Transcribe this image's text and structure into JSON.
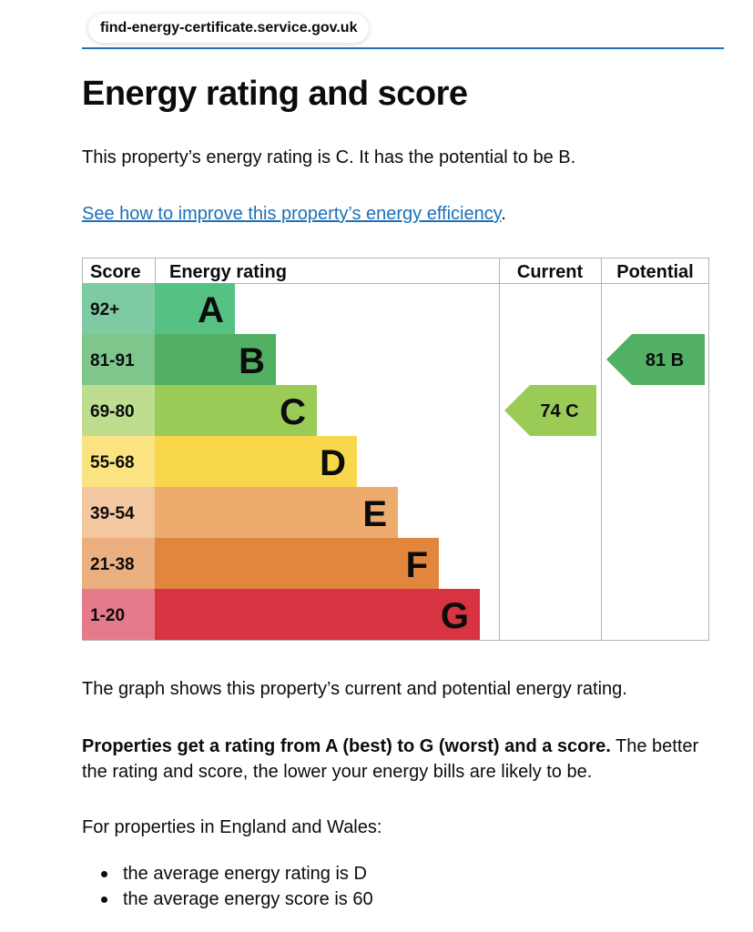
{
  "browser": {
    "url": "find-energy-certificate.service.gov.uk"
  },
  "page": {
    "title": "Energy rating and score",
    "intro": "This property’s energy rating is C. It has the potential to be B.",
    "improve_link": "See how to improve this property’s energy efficiency",
    "improve_link_suffix": ".",
    "graph_description": "The graph shows this property’s current and potential energy rating.",
    "ratings_bold": "Properties get a rating from A (best) to G (worst) and a score.",
    "ratings_rest": " The better the rating and score, the lower your energy bills are likely to be.",
    "region_intro": "For properties in England and Wales:",
    "averages": [
      "the average energy rating is D",
      "the average energy score is 60"
    ]
  },
  "chart": {
    "headers": {
      "score": "Score",
      "rating": "Energy rating",
      "current": "Current",
      "potential": "Potential"
    },
    "bands": [
      {
        "score": "92+",
        "letter": "A",
        "color": "#55c283",
        "score_bg": "#7ecaa2"
      },
      {
        "score": "81-91",
        "letter": "B",
        "color": "#51b062",
        "score_bg": "#7fc68d"
      },
      {
        "score": "69-80",
        "letter": "C",
        "color": "#9acb57",
        "score_bg": "#bedd8f"
      },
      {
        "score": "55-68",
        "letter": "D",
        "color": "#f8d74a",
        "score_bg": "#fbe381"
      },
      {
        "score": "39-54",
        "letter": "E",
        "color": "#edac6d",
        "score_bg": "#f3c7a0"
      },
      {
        "score": "21-38",
        "letter": "F",
        "color": "#e2863d",
        "score_bg": "#ebaf80"
      },
      {
        "score": "1-20",
        "letter": "G",
        "color": "#d83340",
        "score_bg": "#e57b8a"
      }
    ],
    "current": {
      "label": "74  C",
      "score": 74,
      "band": "C",
      "color": "#9acb57"
    },
    "potential": {
      "label": "81  B",
      "score": 81,
      "band": "B",
      "color": "#51b062"
    }
  }
}
